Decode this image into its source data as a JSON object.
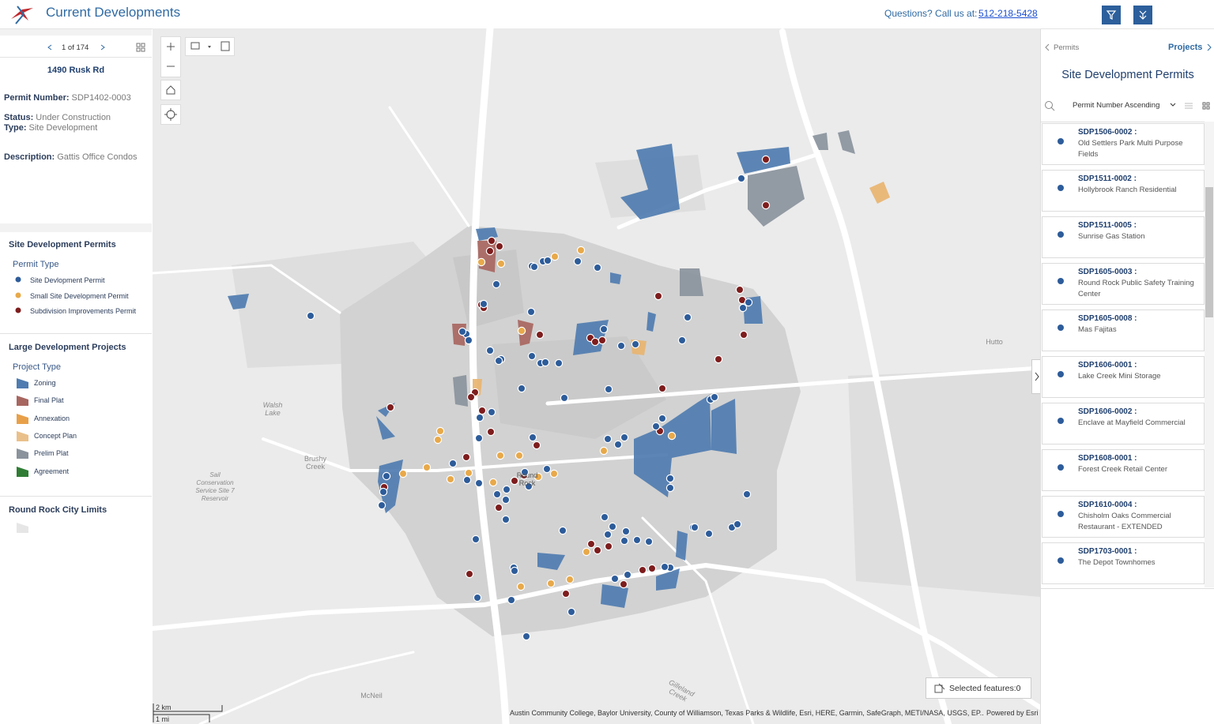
{
  "header": {
    "title": "Current Developments",
    "question": "Questions? Call us at:",
    "phone": "512-218-5428"
  },
  "feature_panel": {
    "pager": "1 of 174",
    "title": "1490 Rusk Rd",
    "fields": [
      {
        "label": "Permit Number:",
        "value": "SDP1402-0003"
      },
      {
        "label": "Status:",
        "value": "Under Construction"
      },
      {
        "label": "Type:",
        "value": "Site Development"
      },
      {
        "label": "Description:",
        "value": "Gattis Office Condos"
      }
    ]
  },
  "legend": {
    "sections": [
      {
        "title": "Site Development Permits",
        "subtitle": "Permit Type",
        "items": [
          "Site Devlopment Permit",
          "Small Site Development Permit",
          "Subdivision Improvements Permit"
        ]
      },
      {
        "title": "Large Development Projects",
        "subtitle": "Project Type",
        "items": [
          "Zoning",
          "Final Plat",
          "Annexation",
          "Concept Plan",
          "Prelim Plat",
          "Agreement"
        ]
      },
      {
        "title": "Round Rock City Limits"
      }
    ]
  },
  "map": {
    "labels": [
      "Hutto",
      "Walsh Lake",
      "Brushy Creek",
      "Round Rock",
      "McNeil",
      "Gilleland Creek",
      "Sail Conservation Service Site 7 Reservoir"
    ],
    "scale": [
      "2 km",
      "1 mi"
    ],
    "attribution": "Austin Community College, Baylor University, County of Williamson, Texas Parks & Wildlife, Esri, HERE, Garmin, SafeGraph, METI/NASA, USGS, EP...",
    "powered_by": "Powered by Esri",
    "selected": "Selected features:0"
  },
  "list_panel": {
    "back": "Permits",
    "forward": "Projects",
    "title": "Site Development Permits",
    "sort": "Permit Number Ascending",
    "items": [
      {
        "id": "SDP1506-0002 :",
        "name": "Old Settlers Park Multi Purpose Fields"
      },
      {
        "id": "SDP1511-0002 :",
        "name": "Hollybrook Ranch Residential"
      },
      {
        "id": "SDP1511-0005 :",
        "name": "Sunrise Gas Station"
      },
      {
        "id": "SDP1605-0003 :",
        "name": "Round Rock Public Safety Training Center"
      },
      {
        "id": "SDP1605-0008 :",
        "name": "Mas Fajitas"
      },
      {
        "id": "SDP1606-0001 :",
        "name": "Lake Creek Mini Storage"
      },
      {
        "id": "SDP1606-0002 :",
        "name": "Enclave at Mayfield Commercial"
      },
      {
        "id": "SDP1608-0001 :",
        "name": "Forest Creek Retail Center"
      },
      {
        "id": "SDP1610-0004 :",
        "name": "Chisholm Oaks Commercial Restaurant - EXTENDED"
      },
      {
        "id": "SDP1703-0001 :",
        "name": "The Depot Townhomes"
      }
    ]
  }
}
